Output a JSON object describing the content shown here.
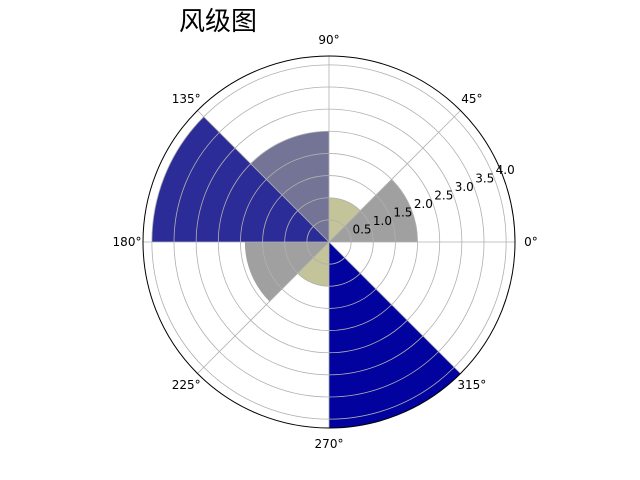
{
  "chart_data": {
    "type": "polar-bar",
    "title": "风级图",
    "angle_ticks": [
      {
        "angle": 0,
        "label": "0°"
      },
      {
        "angle": 45,
        "label": "45°"
      },
      {
        "angle": 90,
        "label": "90°"
      },
      {
        "angle": 135,
        "label": "135°"
      },
      {
        "angle": 180,
        "label": "180°"
      },
      {
        "angle": 225,
        "label": "225°"
      },
      {
        "angle": 270,
        "label": "270°"
      },
      {
        "angle": 315,
        "label": "315°"
      }
    ],
    "radial_ticks": [
      {
        "value": 0.5,
        "label": "0.5"
      },
      {
        "value": 1.0,
        "label": "1.0"
      },
      {
        "value": 1.5,
        "label": "1.5"
      },
      {
        "value": 2.0,
        "label": "2.0"
      },
      {
        "value": 2.5,
        "label": "2.5"
      },
      {
        "value": 3.0,
        "label": "3.0"
      },
      {
        "value": 3.5,
        "label": "3.5"
      },
      {
        "value": 4.0,
        "label": "4.0"
      }
    ],
    "rmax": 4.2,
    "grid": true,
    "bars": [
      {
        "start_deg": 0,
        "end_deg": 45,
        "value": 2.0,
        "color": "#a0a0a0"
      },
      {
        "start_deg": 45,
        "end_deg": 90,
        "value": 1.0,
        "color": "#c4c49a"
      },
      {
        "start_deg": 90,
        "end_deg": 135,
        "value": 2.5,
        "color": "#747496"
      },
      {
        "start_deg": 135,
        "end_deg": 180,
        "value": 4.0,
        "color": "#2c2c98"
      },
      {
        "start_deg": 180,
        "end_deg": 225,
        "value": 1.9,
        "color": "#a0a0a0"
      },
      {
        "start_deg": 225,
        "end_deg": 270,
        "value": 1.0,
        "color": "#c4c49a"
      },
      {
        "start_deg": 270,
        "end_deg": 315,
        "value": 4.5,
        "color": "#02029e"
      }
    ]
  }
}
